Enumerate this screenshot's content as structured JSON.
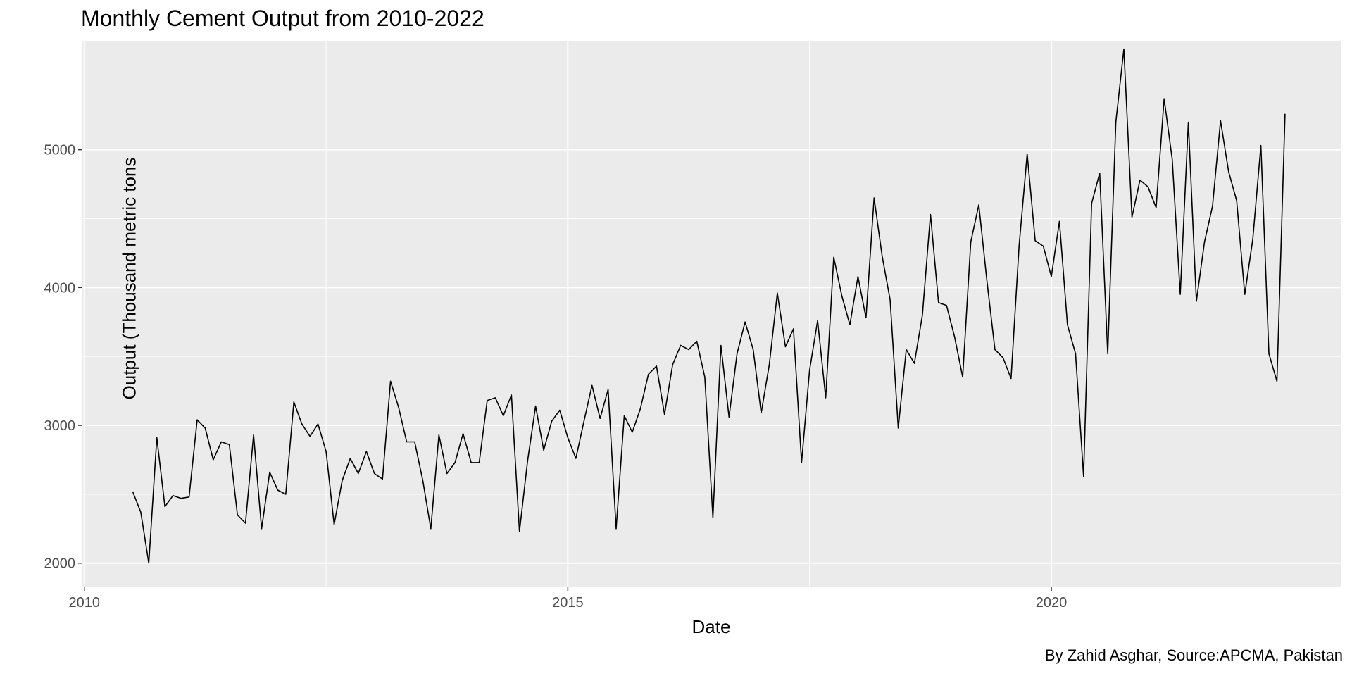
{
  "chart_data": {
    "type": "line",
    "title": "Monthly Cement Output from 2010-2022",
    "xlabel": "Date",
    "ylabel": "Output (Thousand metric tons",
    "caption": "By Zahid Asghar, Source:APCMA, Pakistan",
    "xlim": [
      2009.98,
      2023.0
    ],
    "ylim": [
      1830,
      5790
    ],
    "x_ticks": [
      2010,
      2015,
      2020
    ],
    "y_ticks": [
      2000,
      3000,
      4000,
      5000
    ],
    "grid": true,
    "background": "#ebebeb",
    "line_color": "#000000",
    "series": [
      {
        "x_start": "2010-07",
        "frequency": "monthly",
        "values": [
          2520,
          2370,
          2000,
          2910,
          2410,
          2490,
          2470,
          2480,
          3040,
          2980,
          2750,
          2880,
          2860,
          2350,
          2290,
          2930,
          2250,
          2660,
          2530,
          2500,
          3170,
          3010,
          2920,
          3010,
          2810,
          2280,
          2600,
          2760,
          2650,
          2810,
          2650,
          2610,
          3320,
          3130,
          2880,
          2880,
          2600,
          2250,
          2930,
          2650,
          2730,
          2940,
          2730,
          2730,
          3180,
          3200,
          3070,
          3220,
          2230,
          2740,
          3140,
          2820,
          3030,
          3110,
          2910,
          2760,
          3030,
          3290,
          3050,
          3260,
          2250,
          3070,
          2950,
          3120,
          3370,
          3430,
          3080,
          3440,
          3580,
          3550,
          3610,
          3350,
          2330,
          3580,
          3060,
          3520,
          3750,
          3550,
          3090,
          3440,
          3960,
          3570,
          3700,
          2730,
          3400,
          3760,
          3200,
          4220,
          3940,
          3730,
          4080,
          3780,
          4650,
          4230,
          3910,
          2980,
          3550,
          3450,
          3800,
          4530,
          3890,
          3870,
          3640,
          3350,
          4330,
          4600,
          4050,
          3550,
          3490,
          3340,
          4300,
          4970,
          4340,
          4300,
          4080,
          4480,
          3730,
          3520,
          2630,
          4610,
          4830,
          3520,
          5200,
          5730,
          4510,
          4780,
          4730,
          4580,
          5370,
          4930,
          3950,
          5200,
          3900,
          4330,
          4590,
          5210,
          4840,
          4630,
          3950,
          4350,
          5030,
          3520,
          3320,
          5260
        ]
      }
    ]
  }
}
